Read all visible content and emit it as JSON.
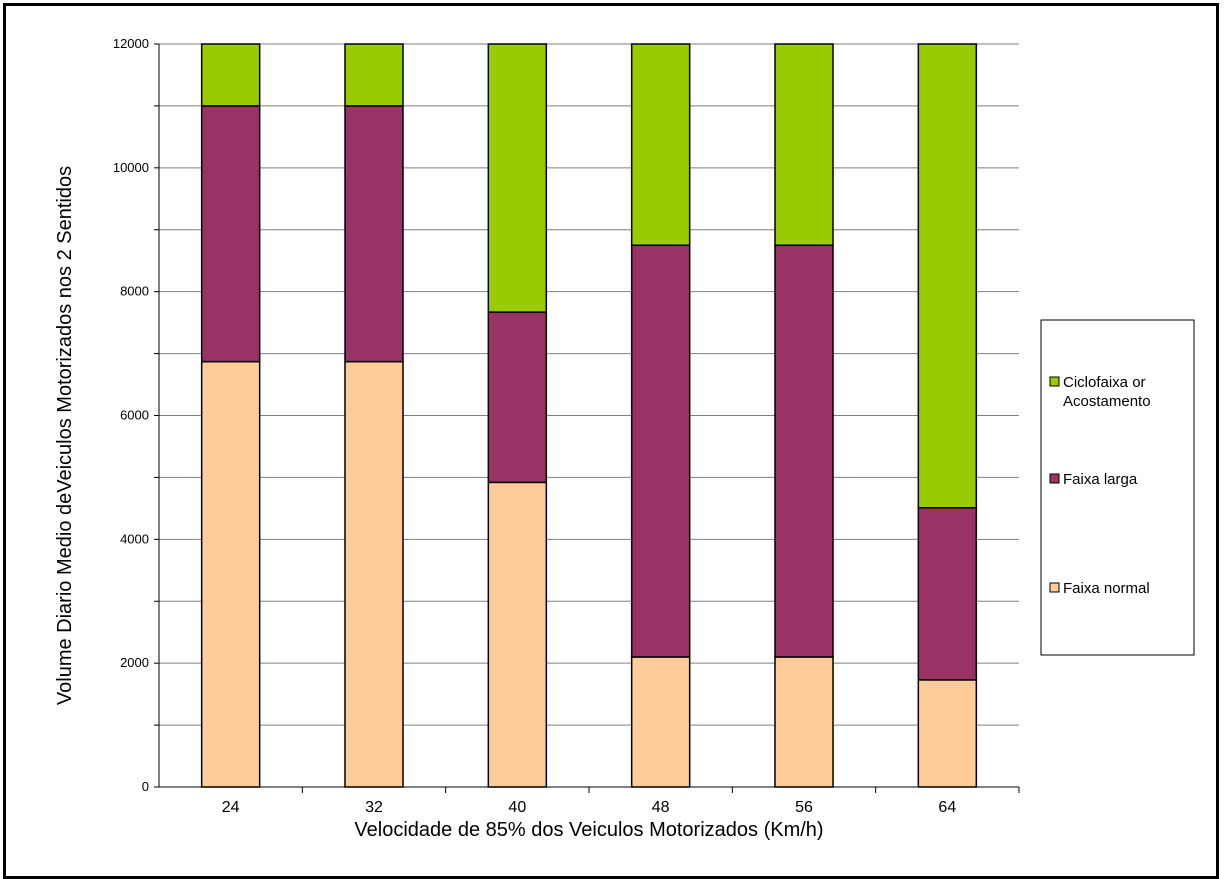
{
  "chart_data": {
    "type": "bar",
    "stacked": true,
    "categories": [
      "24",
      "32",
      "40",
      "48",
      "56",
      "64"
    ],
    "series": [
      {
        "name": "Faixa normal",
        "color": "#ffcc99",
        "values": [
          6870,
          6870,
          4920,
          2100,
          2100,
          1730
        ]
      },
      {
        "name": "Faixa larga",
        "color": "#993366",
        "values": [
          4130,
          4130,
          2750,
          6650,
          6650,
          2780
        ]
      },
      {
        "name": "Ciclofaixa or Acostamento",
        "color": "#99cc00",
        "values": [
          1000,
          1000,
          4330,
          3250,
          3250,
          7490
        ]
      }
    ],
    "legend_labels": [
      [
        "Ciclofaixa or",
        "Acostamento"
      ],
      [
        "Faixa larga"
      ],
      [
        "Faixa normal"
      ]
    ],
    "xlabel": "Velocidade de 85% dos Veiculos Motorizados (Km/h)",
    "ylabel": "Volume Diario Medio deVeiculos Motorizados nos 2 Sentidos",
    "ylim": [
      0,
      12000
    ],
    "yticks": [
      0,
      2000,
      4000,
      6000,
      8000,
      10000,
      12000
    ],
    "grid": true,
    "legend_position": "right"
  }
}
